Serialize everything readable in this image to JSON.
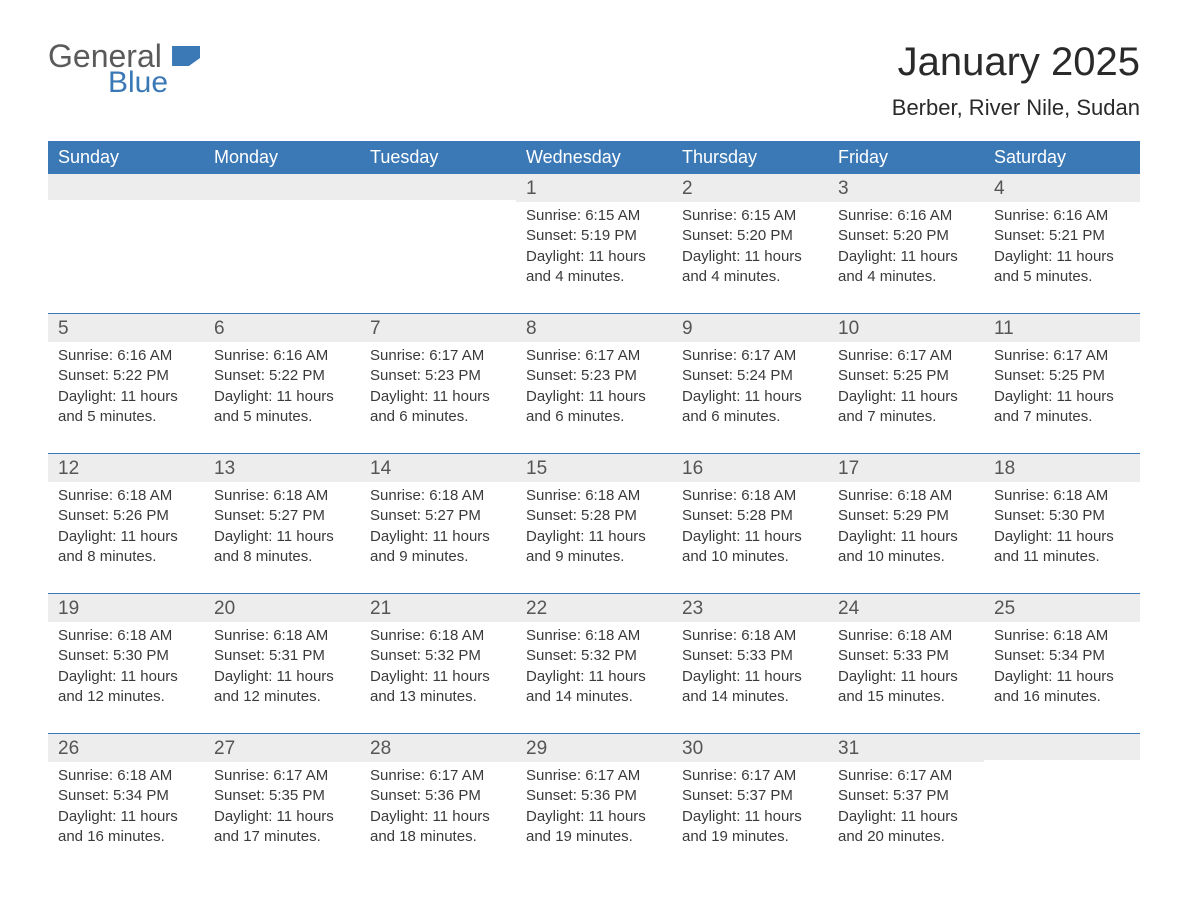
{
  "logo": {
    "line1": "General",
    "line2": "Blue"
  },
  "header": {
    "month_title": "January 2025",
    "location": "Berber, River Nile, Sudan"
  },
  "colors": {
    "accent": "#3a78b6",
    "header_text": "#ffffff",
    "daynum_bg": "#ededed",
    "body_text": "#3a3a3a",
    "background": "#ffffff"
  },
  "day_headers": [
    "Sunday",
    "Monday",
    "Tuesday",
    "Wednesday",
    "Thursday",
    "Friday",
    "Saturday"
  ],
  "weeks": [
    [
      {
        "blank": true
      },
      {
        "blank": true
      },
      {
        "blank": true
      },
      {
        "day": "1",
        "sunrise": "Sunrise: 6:15 AM",
        "sunset": "Sunset: 5:19 PM",
        "daylight": "Daylight: 11 hours and 4 minutes."
      },
      {
        "day": "2",
        "sunrise": "Sunrise: 6:15 AM",
        "sunset": "Sunset: 5:20 PM",
        "daylight": "Daylight: 11 hours and 4 minutes."
      },
      {
        "day": "3",
        "sunrise": "Sunrise: 6:16 AM",
        "sunset": "Sunset: 5:20 PM",
        "daylight": "Daylight: 11 hours and 4 minutes."
      },
      {
        "day": "4",
        "sunrise": "Sunrise: 6:16 AM",
        "sunset": "Sunset: 5:21 PM",
        "daylight": "Daylight: 11 hours and 5 minutes."
      }
    ],
    [
      {
        "day": "5",
        "sunrise": "Sunrise: 6:16 AM",
        "sunset": "Sunset: 5:22 PM",
        "daylight": "Daylight: 11 hours and 5 minutes."
      },
      {
        "day": "6",
        "sunrise": "Sunrise: 6:16 AM",
        "sunset": "Sunset: 5:22 PM",
        "daylight": "Daylight: 11 hours and 5 minutes."
      },
      {
        "day": "7",
        "sunrise": "Sunrise: 6:17 AM",
        "sunset": "Sunset: 5:23 PM",
        "daylight": "Daylight: 11 hours and 6 minutes."
      },
      {
        "day": "8",
        "sunrise": "Sunrise: 6:17 AM",
        "sunset": "Sunset: 5:23 PM",
        "daylight": "Daylight: 11 hours and 6 minutes."
      },
      {
        "day": "9",
        "sunrise": "Sunrise: 6:17 AM",
        "sunset": "Sunset: 5:24 PM",
        "daylight": "Daylight: 11 hours and 6 minutes."
      },
      {
        "day": "10",
        "sunrise": "Sunrise: 6:17 AM",
        "sunset": "Sunset: 5:25 PM",
        "daylight": "Daylight: 11 hours and 7 minutes."
      },
      {
        "day": "11",
        "sunrise": "Sunrise: 6:17 AM",
        "sunset": "Sunset: 5:25 PM",
        "daylight": "Daylight: 11 hours and 7 minutes."
      }
    ],
    [
      {
        "day": "12",
        "sunrise": "Sunrise: 6:18 AM",
        "sunset": "Sunset: 5:26 PM",
        "daylight": "Daylight: 11 hours and 8 minutes."
      },
      {
        "day": "13",
        "sunrise": "Sunrise: 6:18 AM",
        "sunset": "Sunset: 5:27 PM",
        "daylight": "Daylight: 11 hours and 8 minutes."
      },
      {
        "day": "14",
        "sunrise": "Sunrise: 6:18 AM",
        "sunset": "Sunset: 5:27 PM",
        "daylight": "Daylight: 11 hours and 9 minutes."
      },
      {
        "day": "15",
        "sunrise": "Sunrise: 6:18 AM",
        "sunset": "Sunset: 5:28 PM",
        "daylight": "Daylight: 11 hours and 9 minutes."
      },
      {
        "day": "16",
        "sunrise": "Sunrise: 6:18 AM",
        "sunset": "Sunset: 5:28 PM",
        "daylight": "Daylight: 11 hours and 10 minutes."
      },
      {
        "day": "17",
        "sunrise": "Sunrise: 6:18 AM",
        "sunset": "Sunset: 5:29 PM",
        "daylight": "Daylight: 11 hours and 10 minutes."
      },
      {
        "day": "18",
        "sunrise": "Sunrise: 6:18 AM",
        "sunset": "Sunset: 5:30 PM",
        "daylight": "Daylight: 11 hours and 11 minutes."
      }
    ],
    [
      {
        "day": "19",
        "sunrise": "Sunrise: 6:18 AM",
        "sunset": "Sunset: 5:30 PM",
        "daylight": "Daylight: 11 hours and 12 minutes."
      },
      {
        "day": "20",
        "sunrise": "Sunrise: 6:18 AM",
        "sunset": "Sunset: 5:31 PM",
        "daylight": "Daylight: 11 hours and 12 minutes."
      },
      {
        "day": "21",
        "sunrise": "Sunrise: 6:18 AM",
        "sunset": "Sunset: 5:32 PM",
        "daylight": "Daylight: 11 hours and 13 minutes."
      },
      {
        "day": "22",
        "sunrise": "Sunrise: 6:18 AM",
        "sunset": "Sunset: 5:32 PM",
        "daylight": "Daylight: 11 hours and 14 minutes."
      },
      {
        "day": "23",
        "sunrise": "Sunrise: 6:18 AM",
        "sunset": "Sunset: 5:33 PM",
        "daylight": "Daylight: 11 hours and 14 minutes."
      },
      {
        "day": "24",
        "sunrise": "Sunrise: 6:18 AM",
        "sunset": "Sunset: 5:33 PM",
        "daylight": "Daylight: 11 hours and 15 minutes."
      },
      {
        "day": "25",
        "sunrise": "Sunrise: 6:18 AM",
        "sunset": "Sunset: 5:34 PM",
        "daylight": "Daylight: 11 hours and 16 minutes."
      }
    ],
    [
      {
        "day": "26",
        "sunrise": "Sunrise: 6:18 AM",
        "sunset": "Sunset: 5:34 PM",
        "daylight": "Daylight: 11 hours and 16 minutes."
      },
      {
        "day": "27",
        "sunrise": "Sunrise: 6:17 AM",
        "sunset": "Sunset: 5:35 PM",
        "daylight": "Daylight: 11 hours and 17 minutes."
      },
      {
        "day": "28",
        "sunrise": "Sunrise: 6:17 AM",
        "sunset": "Sunset: 5:36 PM",
        "daylight": "Daylight: 11 hours and 18 minutes."
      },
      {
        "day": "29",
        "sunrise": "Sunrise: 6:17 AM",
        "sunset": "Sunset: 5:36 PM",
        "daylight": "Daylight: 11 hours and 19 minutes."
      },
      {
        "day": "30",
        "sunrise": "Sunrise: 6:17 AM",
        "sunset": "Sunset: 5:37 PM",
        "daylight": "Daylight: 11 hours and 19 minutes."
      },
      {
        "day": "31",
        "sunrise": "Sunrise: 6:17 AM",
        "sunset": "Sunset: 5:37 PM",
        "daylight": "Daylight: 11 hours and 20 minutes."
      },
      {
        "blank": true
      }
    ]
  ]
}
